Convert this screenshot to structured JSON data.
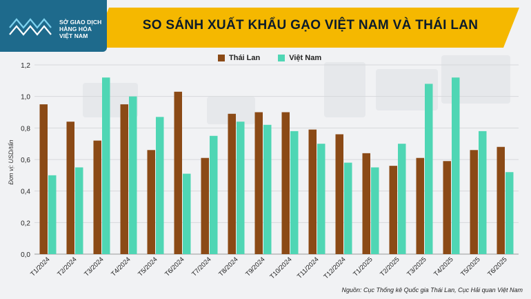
{
  "header": {
    "logo_lines": [
      "SỞ GIAO DỊCH",
      "HÀNG HÓA",
      "VIỆT NAM"
    ],
    "title": "SO SÁNH XUẤT KHẨU GẠO VIỆT NAM VÀ THÁI LAN"
  },
  "colors": {
    "thai": "#8b4a16",
    "viet": "#4fd6b4",
    "header_band": "#f5b800",
    "logo_bg": "#1e6a8c"
  },
  "source": "Nguồn: Cục Thống kê Quốc gia Thái Lan, Cục Hải quan Việt Nam",
  "chart_data": {
    "type": "bar",
    "ylabel": "Đơn vị: USD/tấn",
    "ylim": [
      0,
      1.2
    ],
    "yticks": [
      "0,0",
      "0,2",
      "0,4",
      "0,6",
      "0,8",
      "1,0",
      "1,2"
    ],
    "grid": true,
    "legend_position": "top-center",
    "categories": [
      "T1/2024",
      "T2/2024",
      "T3/2024",
      "T4/2024",
      "T5/2024",
      "T6/2024",
      "T7/2024",
      "T8/2024",
      "T9/2024",
      "T10/2024",
      "T11/2024",
      "T12/2024",
      "T1/2025",
      "T2/2025",
      "T3/2025",
      "T4/2025",
      "T5/2025",
      "T6/2025"
    ],
    "series": [
      {
        "name": "Thái Lan",
        "values": [
          0.95,
          0.84,
          0.72,
          0.95,
          0.66,
          1.03,
          0.61,
          0.89,
          0.9,
          0.9,
          0.79,
          0.76,
          0.64,
          0.56,
          0.61,
          0.59,
          0.66,
          0.68
        ]
      },
      {
        "name": "Việt Nam",
        "values": [
          0.5,
          0.55,
          1.12,
          1.0,
          0.87,
          0.51,
          0.75,
          0.84,
          0.82,
          0.78,
          0.7,
          0.58,
          0.55,
          0.7,
          1.08,
          1.12,
          0.78,
          0.52
        ]
      }
    ]
  }
}
